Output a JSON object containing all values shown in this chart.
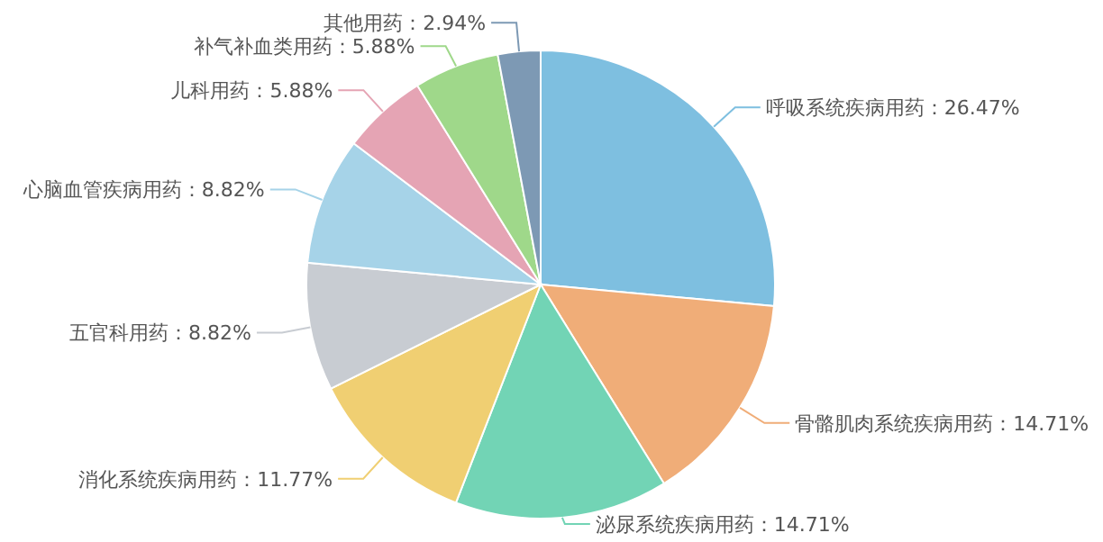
{
  "chart_data": {
    "type": "pie",
    "categories": [
      "呼吸系统疾病用药",
      "骨骼肌肉系统疾病用药",
      "泌尿系统疾病用药",
      "消化系统疾病用药",
      "五官科用药",
      "心脑血管疾病用药",
      "儿科用药",
      "补气补血类用药",
      "其他用药"
    ],
    "values": [
      26.47,
      14.71,
      14.71,
      11.77,
      8.82,
      8.82,
      5.88,
      5.88,
      2.94
    ],
    "value_labels": [
      "26.47%",
      "14.71%",
      "14.71%",
      "11.77%",
      "8.82%",
      "8.82%",
      "5.88%",
      "5.88%",
      "2.94%"
    ],
    "colors": [
      "#7ebfe0",
      "#f0ad78",
      "#72d4b5",
      "#f0cf72",
      "#c8ccd2",
      "#a6d3e8",
      "#e5a4b4",
      "#9fd88a",
      "#7d99b4"
    ]
  }
}
